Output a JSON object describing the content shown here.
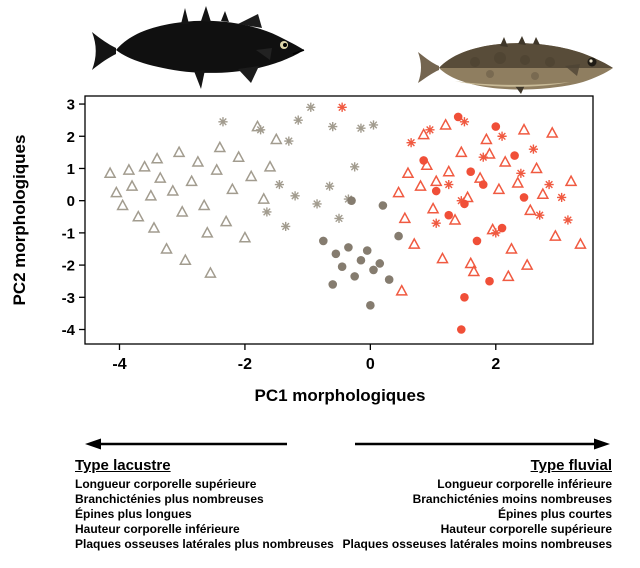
{
  "chart_data": {
    "type": "scatter",
    "xlabel": "PC1 morphologiques",
    "ylabel": "PC2 morphologiques",
    "xlim": [
      -4.55,
      3.55
    ],
    "ylim": [
      -4.45,
      3.25
    ],
    "xticks": [
      -4,
      -2,
      0,
      2
    ],
    "yticks": [
      -4,
      -3,
      -2,
      -1,
      0,
      1,
      2,
      3
    ],
    "grid": false,
    "legend_position": "none",
    "colors": {
      "gray_open": "#a29c8f",
      "gray_fill": "#857c6f",
      "red_open": "#f05a41",
      "red_fill": "#f04f38"
    },
    "series": [
      {
        "name": "triangles-gris",
        "marker": "triangle",
        "color": "#a29c8f",
        "points": [
          [
            -4.15,
            0.85
          ],
          [
            -4.05,
            0.25
          ],
          [
            -3.95,
            -0.15
          ],
          [
            -3.85,
            0.95
          ],
          [
            -3.8,
            0.45
          ],
          [
            -3.7,
            -0.5
          ],
          [
            -3.6,
            1.05
          ],
          [
            -3.5,
            0.15
          ],
          [
            -3.45,
            -0.85
          ],
          [
            -3.35,
            0.7
          ],
          [
            -3.25,
            -1.5
          ],
          [
            -3.15,
            0.3
          ],
          [
            -3.05,
            1.5
          ],
          [
            -3.0,
            -0.35
          ],
          [
            -2.95,
            -1.85
          ],
          [
            -2.85,
            0.6
          ],
          [
            -2.75,
            1.2
          ],
          [
            -2.65,
            -0.15
          ],
          [
            -2.55,
            -2.25
          ],
          [
            -2.45,
            0.95
          ],
          [
            -2.4,
            1.65
          ],
          [
            -2.3,
            -0.65
          ],
          [
            -2.2,
            0.35
          ],
          [
            -2.1,
            1.35
          ],
          [
            -2.0,
            -1.15
          ],
          [
            -1.9,
            0.75
          ],
          [
            -1.8,
            2.3
          ],
          [
            -1.7,
            0.05
          ],
          [
            -1.6,
            1.05
          ],
          [
            -1.5,
            1.9
          ],
          [
            -2.6,
            -1.0
          ],
          [
            -3.4,
            1.3
          ]
        ]
      },
      {
        "name": "asterisques-gris",
        "marker": "asterisk",
        "color": "#a29c8f",
        "points": [
          [
            -2.35,
            2.45
          ],
          [
            -1.75,
            2.2
          ],
          [
            -1.3,
            1.85
          ],
          [
            -1.15,
            2.5
          ],
          [
            -0.6,
            2.3
          ],
          [
            -0.15,
            2.25
          ],
          [
            -1.45,
            0.5
          ],
          [
            -1.2,
            0.15
          ],
          [
            -0.85,
            -0.1
          ],
          [
            -0.65,
            0.45
          ],
          [
            -0.35,
            0.05
          ],
          [
            -1.65,
            -0.35
          ],
          [
            -1.35,
            -0.8
          ],
          [
            -0.5,
            -0.55
          ],
          [
            0.05,
            2.35
          ],
          [
            -0.95,
            2.9
          ],
          [
            -0.25,
            1.05
          ]
        ]
      },
      {
        "name": "cercles-gris",
        "marker": "circle",
        "color": "#857c6f",
        "points": [
          [
            -0.75,
            -1.25
          ],
          [
            -0.55,
            -1.65
          ],
          [
            -0.45,
            -2.05
          ],
          [
            -0.35,
            -1.45
          ],
          [
            -0.25,
            -2.35
          ],
          [
            -0.15,
            -1.85
          ],
          [
            -0.05,
            -1.55
          ],
          [
            0.05,
            -2.15
          ],
          [
            0.15,
            -1.95
          ],
          [
            0.3,
            -2.45
          ],
          [
            -0.6,
            -2.6
          ],
          [
            0.0,
            -3.25
          ],
          [
            0.2,
            -0.15
          ],
          [
            -0.3,
            0.0
          ],
          [
            0.45,
            -1.1
          ]
        ]
      },
      {
        "name": "triangles-rouges",
        "marker": "triangle",
        "color": "#f05a41",
        "points": [
          [
            0.45,
            0.25
          ],
          [
            0.55,
            -0.55
          ],
          [
            0.6,
            0.85
          ],
          [
            0.7,
            -1.35
          ],
          [
            0.8,
            0.45
          ],
          [
            0.9,
            1.1
          ],
          [
            1.0,
            -0.25
          ],
          [
            1.05,
            0.6
          ],
          [
            1.15,
            -1.8
          ],
          [
            1.25,
            0.9
          ],
          [
            1.35,
            -0.6
          ],
          [
            1.45,
            1.5
          ],
          [
            1.55,
            0.1
          ],
          [
            1.65,
            -2.2
          ],
          [
            1.75,
            0.7
          ],
          [
            1.85,
            1.9
          ],
          [
            1.95,
            -0.9
          ],
          [
            2.05,
            0.35
          ],
          [
            2.15,
            1.2
          ],
          [
            2.25,
            -1.5
          ],
          [
            2.35,
            0.55
          ],
          [
            2.45,
            2.2
          ],
          [
            2.55,
            -0.3
          ],
          [
            2.65,
            1.0
          ],
          [
            2.75,
            0.2
          ],
          [
            2.95,
            -1.1
          ],
          [
            3.2,
            0.6
          ],
          [
            0.5,
            -2.8
          ],
          [
            1.2,
            2.35
          ],
          [
            2.9,
            2.1
          ],
          [
            1.6,
            -1.95
          ],
          [
            2.2,
            -2.35
          ],
          [
            3.35,
            -1.35
          ],
          [
            2.5,
            -2.0
          ],
          [
            0.85,
            2.05
          ],
          [
            1.9,
            1.45
          ]
        ]
      },
      {
        "name": "asterisques-rouges",
        "marker": "asterisk",
        "color": "#f05a41",
        "points": [
          [
            0.65,
            1.8
          ],
          [
            0.95,
            2.2
          ],
          [
            1.25,
            0.5
          ],
          [
            1.5,
            2.45
          ],
          [
            1.8,
            1.35
          ],
          [
            2.1,
            2.0
          ],
          [
            2.4,
            0.85
          ],
          [
            2.7,
            -0.45
          ],
          [
            3.05,
            0.1
          ],
          [
            1.05,
            -0.7
          ],
          [
            1.45,
            0.0
          ],
          [
            2.0,
            -1.0
          ],
          [
            2.6,
            1.6
          ],
          [
            3.15,
            -0.6
          ],
          [
            -0.45,
            2.9
          ],
          [
            2.85,
            0.5
          ]
        ]
      },
      {
        "name": "cercles-rouges",
        "marker": "circle",
        "color": "#f04f38",
        "points": [
          [
            0.85,
            1.25
          ],
          [
            1.05,
            0.3
          ],
          [
            1.25,
            -0.45
          ],
          [
            1.4,
            2.6
          ],
          [
            1.5,
            -0.1
          ],
          [
            1.6,
            0.9
          ],
          [
            1.7,
            -1.25
          ],
          [
            1.8,
            0.5
          ],
          [
            2.0,
            2.3
          ],
          [
            2.1,
            -0.85
          ],
          [
            2.3,
            1.4
          ],
          [
            1.5,
            -3.0
          ],
          [
            1.45,
            -4.0
          ],
          [
            1.9,
            -2.5
          ],
          [
            2.45,
            0.1
          ]
        ]
      }
    ]
  },
  "direction_labels": {
    "left": {
      "title": "Type lacustre",
      "items": [
        "Longueur corporelle supérieure",
        "Branchicténies plus nombreuses",
        "Épines plus longues",
        "Hauteur corporelle inférieure",
        "Plaques osseuses latérales plus nombreuses"
      ]
    },
    "right": {
      "title": "Type fluvial",
      "items": [
        "Longueur corporelle inférieure",
        "Branchicténies moins nombreuses",
        "Épines plus courtes",
        "Hauteur corporelle supérieure",
        "Plaques osseuses latérales moins nombreuses"
      ]
    }
  }
}
